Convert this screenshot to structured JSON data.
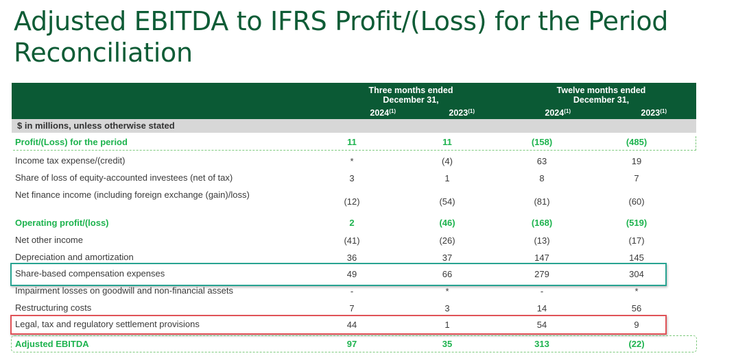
{
  "title": "Adjusted EBITDA to IFRS Profit/(Loss) for the Period Reconciliation",
  "header": {
    "group1": "Three months ended\nDecember 31,",
    "group2": "Twelve months ended\nDecember 31,",
    "years": [
      "2024",
      "2023",
      "2024",
      "2023"
    ],
    "footnote": "(1)"
  },
  "subheader": "$ in millions, unless otherwise stated",
  "rows": [
    {
      "label": "Profit/(Loss) for the period",
      "values": [
        "11",
        "11",
        "(158)",
        "(485)"
      ],
      "bold": true
    },
    {
      "label": "Income tax expense/(credit)",
      "values": [
        "*",
        "(4)",
        "63",
        "19"
      ]
    },
    {
      "label": "Share of loss of equity-accounted investees (net of tax)",
      "values": [
        "3",
        "1",
        "8",
        "7"
      ]
    },
    {
      "label": "Net finance income (including foreign exchange (gain)/loss)",
      "values": [
        "(12)",
        "(54)",
        "(81)",
        "(60)"
      ]
    },
    {
      "label": "Operating profit/(loss)",
      "values": [
        "2",
        "(46)",
        "(168)",
        "(519)"
      ],
      "bold": true
    },
    {
      "label": "Net other income",
      "values": [
        "(41)",
        "(26)",
        "(13)",
        "(17)"
      ]
    },
    {
      "label": "Depreciation and amortization",
      "values": [
        "36",
        "37",
        "147",
        "145"
      ]
    },
    {
      "label": "Share-based compensation expenses",
      "values": [
        "49",
        "66",
        "279",
        "304"
      ]
    },
    {
      "label": "Impairment losses on goodwill and non-financial assets",
      "values": [
        "-",
        "*",
        "-",
        "*"
      ]
    },
    {
      "label": "Restructuring costs",
      "values": [
        "7",
        "3",
        "14",
        "56"
      ]
    },
    {
      "label": "Legal, tax and regulatory settlement provisions",
      "values": [
        "44",
        "1",
        "54",
        "9"
      ]
    },
    {
      "label": "Adjusted EBITDA",
      "values": [
        "97",
        "35",
        "313",
        "(22)"
      ],
      "bold": true
    }
  ]
}
